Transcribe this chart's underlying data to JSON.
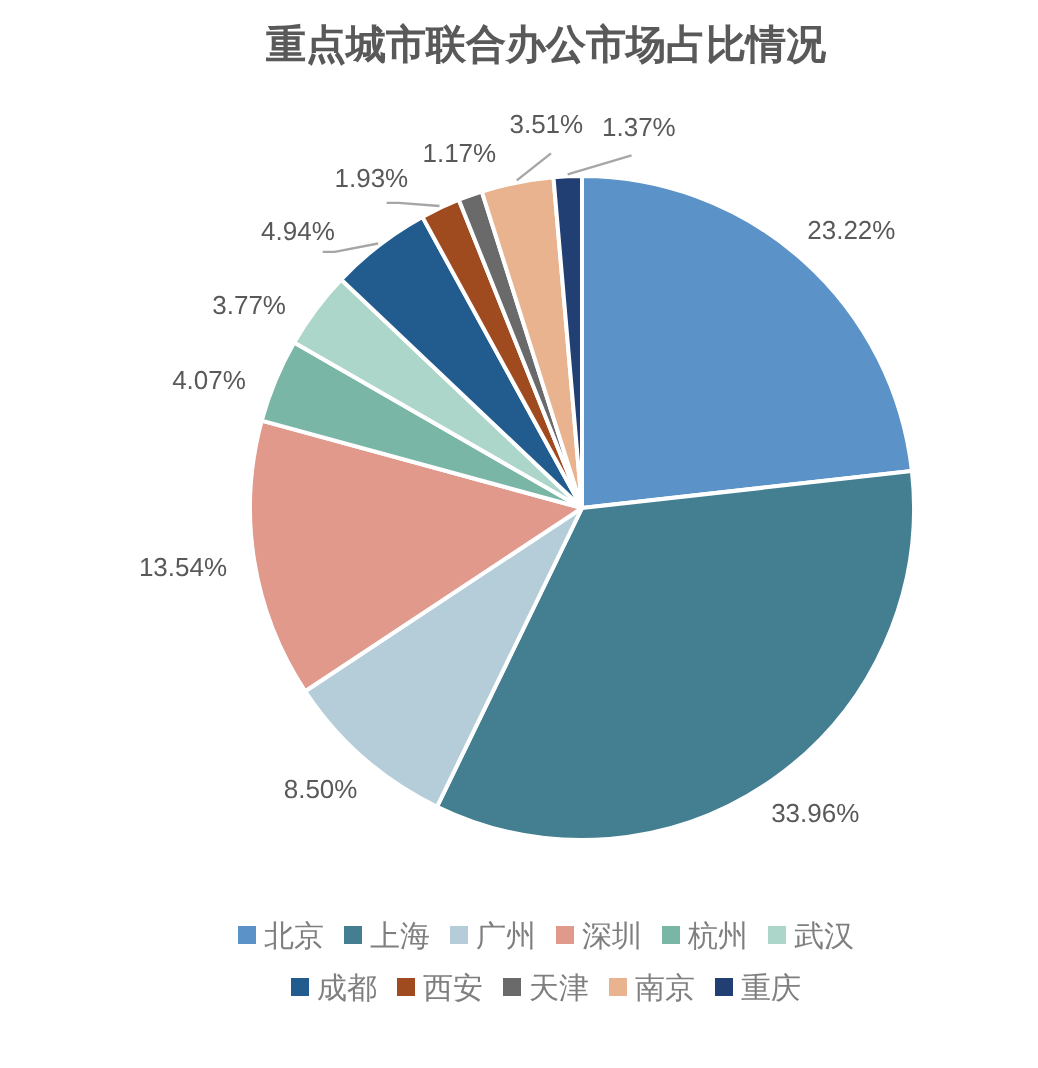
{
  "chart_data": {
    "type": "pie",
    "title": "重点城市联合办公市场占比情况",
    "categories": [
      "北京",
      "上海",
      "广州",
      "深圳",
      "杭州",
      "武汉",
      "成都",
      "西安",
      "天津",
      "南京",
      "重庆"
    ],
    "values": [
      23.22,
      33.96,
      8.5,
      13.54,
      4.07,
      3.77,
      4.94,
      1.93,
      1.17,
      3.51,
      1.37
    ],
    "value_labels": [
      "23.22%",
      "33.96%",
      "8.50%",
      "13.54%",
      "4.07%",
      "3.77%",
      "4.94%",
      "1.93%",
      "1.17%",
      "3.51%",
      "1.37%"
    ],
    "colors": [
      "#5b93c8",
      "#437f91",
      "#b4cdd8",
      "#e0998b",
      "#7ab6a6",
      "#acd6c9",
      "#225c8e",
      "#a04a1f",
      "#6a6a6a",
      "#e9b390",
      "#213f73"
    ],
    "legend": "bottom"
  }
}
